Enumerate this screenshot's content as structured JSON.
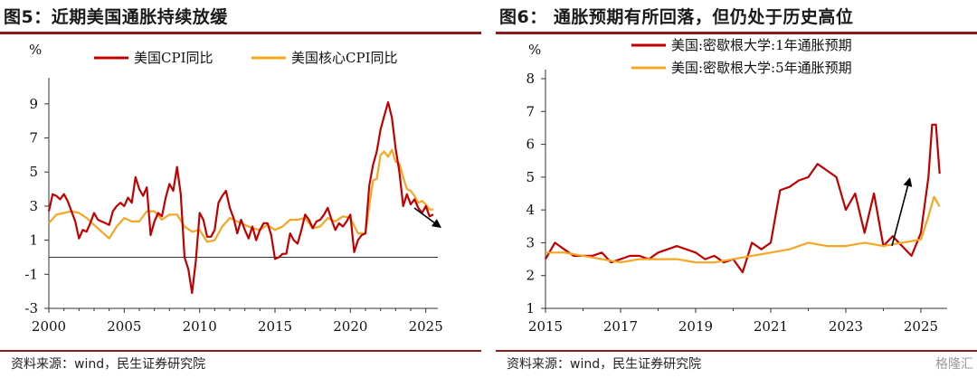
{
  "panels": [
    {
      "title": "图5：近期美国通胀持续放缓",
      "source": "资料来源：wind，民生证券研究院"
    },
    {
      "title": "图6：  通胀预期有所回落，但仍处于历史高位",
      "source": "资料来源：wind，民生证券研究院"
    }
  ],
  "watermark": "格隆汇",
  "chart_data": [
    {
      "type": "line",
      "title": "",
      "ylabel": "%",
      "xlabel": "",
      "xlim": [
        2000,
        2025.8
      ],
      "ylim": [
        -3,
        10
      ],
      "xticks": [
        2000,
        2005,
        2010,
        2015,
        2020,
        2025
      ],
      "yticks": [
        -3,
        -1,
        1,
        3,
        5,
        7,
        9
      ],
      "grid": false,
      "legend_position": "top",
      "zero_line": true,
      "series": [
        {
          "name": "美国CPI同比",
          "color": "#c00000",
          "x": [
            2000.0,
            2000.25,
            2000.5,
            2000.75,
            2001.0,
            2001.25,
            2001.5,
            2001.75,
            2002.0,
            2002.25,
            2002.5,
            2002.75,
            2003.0,
            2003.25,
            2003.5,
            2003.75,
            2004.0,
            2004.25,
            2004.5,
            2004.75,
            2005.0,
            2005.25,
            2005.5,
            2005.75,
            2006.0,
            2006.25,
            2006.5,
            2006.75,
            2007.0,
            2007.25,
            2007.5,
            2007.75,
            2008.0,
            2008.25,
            2008.5,
            2008.75,
            2009.0,
            2009.25,
            2009.5,
            2009.75,
            2010.0,
            2010.25,
            2010.5,
            2010.75,
            2011.0,
            2011.25,
            2011.5,
            2011.75,
            2012.0,
            2012.25,
            2012.5,
            2012.75,
            2013.0,
            2013.25,
            2013.5,
            2013.75,
            2014.0,
            2014.25,
            2014.5,
            2014.75,
            2015.0,
            2015.25,
            2015.5,
            2015.75,
            2016.0,
            2016.25,
            2016.5,
            2016.75,
            2017.0,
            2017.25,
            2017.5,
            2017.75,
            2018.0,
            2018.25,
            2018.5,
            2018.75,
            2019.0,
            2019.25,
            2019.5,
            2019.75,
            2020.0,
            2020.25,
            2020.5,
            2020.75,
            2021.0,
            2021.25,
            2021.5,
            2021.75,
            2022.0,
            2022.25,
            2022.5,
            2022.75,
            2023.0,
            2023.25,
            2023.5,
            2023.75,
            2024.0,
            2024.25,
            2024.5,
            2024.75,
            2025.0,
            2025.25,
            2025.5
          ],
          "values": [
            2.7,
            3.7,
            3.6,
            3.4,
            3.7,
            3.3,
            2.7,
            2.1,
            1.1,
            1.6,
            1.5,
            2.0,
            2.6,
            2.2,
            2.1,
            2.0,
            1.9,
            2.7,
            3.0,
            3.2,
            3.0,
            3.5,
            3.2,
            4.7,
            4.0,
            3.6,
            4.1,
            1.3,
            2.1,
            2.6,
            2.4,
            3.5,
            4.3,
            3.9,
            5.3,
            3.7,
            0.0,
            -0.7,
            -2.1,
            -0.2,
            2.6,
            2.2,
            1.2,
            1.2,
            1.6,
            3.2,
            3.6,
            3.9,
            2.9,
            2.3,
            1.4,
            2.2,
            1.6,
            1.1,
            1.8,
            1.0,
            1.6,
            2.0,
            2.0,
            1.3,
            -0.1,
            0.0,
            0.2,
            0.2,
            1.4,
            1.0,
            0.8,
            1.6,
            2.5,
            2.2,
            1.7,
            2.1,
            2.2,
            2.5,
            2.9,
            2.2,
            1.6,
            2.0,
            1.8,
            2.1,
            2.5,
            0.3,
            1.0,
            1.3,
            1.4,
            4.2,
            5.4,
            6.2,
            7.5,
            8.3,
            9.1,
            8.2,
            6.4,
            5.0,
            3.0,
            3.7,
            3.1,
            3.4,
            2.9,
            2.6,
            3.0,
            2.4,
            2.5
          ]
        },
        {
          "name": "美国核心CPI同比",
          "color": "#f5a623",
          "x": [
            2000.0,
            2000.5,
            2001.0,
            2001.5,
            2002.0,
            2002.5,
            2003.0,
            2003.5,
            2004.0,
            2004.5,
            2005.0,
            2005.5,
            2006.0,
            2006.5,
            2007.0,
            2007.5,
            2008.0,
            2008.5,
            2009.0,
            2009.5,
            2010.0,
            2010.5,
            2011.0,
            2011.5,
            2012.0,
            2012.5,
            2013.0,
            2013.5,
            2014.0,
            2014.5,
            2015.0,
            2015.5,
            2016.0,
            2016.5,
            2017.0,
            2017.5,
            2018.0,
            2018.5,
            2019.0,
            2019.5,
            2020.0,
            2020.5,
            2021.0,
            2021.25,
            2021.5,
            2021.75,
            2022.0,
            2022.25,
            2022.5,
            2022.75,
            2023.0,
            2023.25,
            2023.5,
            2023.75,
            2024.0,
            2024.25,
            2024.5,
            2024.75,
            2025.0,
            2025.25,
            2025.5
          ],
          "values": [
            2.0,
            2.5,
            2.6,
            2.7,
            2.6,
            2.3,
            1.9,
            1.5,
            1.1,
            1.8,
            2.3,
            2.1,
            2.1,
            2.7,
            2.7,
            2.2,
            2.5,
            2.5,
            1.8,
            1.5,
            1.6,
            0.9,
            1.0,
            1.8,
            2.3,
            2.1,
            1.9,
            1.7,
            1.6,
            1.9,
            1.6,
            1.8,
            2.2,
            2.2,
            2.3,
            1.7,
            1.8,
            2.3,
            2.1,
            2.4,
            2.3,
            1.4,
            1.4,
            3.0,
            4.5,
            4.6,
            6.0,
            6.2,
            5.9,
            6.3,
            5.6,
            5.5,
            4.7,
            4.0,
            3.9,
            3.6,
            3.2,
            3.3,
            3.1,
            2.8,
            2.8
          ]
        }
      ],
      "annotation": "downward-trend-arrow"
    },
    {
      "type": "line",
      "title": "",
      "ylabel": "%",
      "xlabel": "",
      "xlim": [
        2015,
        2025.7
      ],
      "ylim": [
        1,
        8
      ],
      "xticks": [
        2015,
        2017,
        2019,
        2021,
        2023,
        2025
      ],
      "yticks": [
        1,
        2,
        3,
        4,
        5,
        6,
        7,
        8
      ],
      "grid": false,
      "legend_position": "top",
      "series": [
        {
          "name": "美国:密歇根大学:1年通胀预期",
          "color": "#c00000",
          "x": [
            2015.0,
            2015.25,
            2015.5,
            2015.75,
            2016.0,
            2016.25,
            2016.5,
            2016.75,
            2017.0,
            2017.25,
            2017.5,
            2017.75,
            2018.0,
            2018.25,
            2018.5,
            2018.75,
            2019.0,
            2019.25,
            2019.5,
            2019.75,
            2020.0,
            2020.25,
            2020.5,
            2020.75,
            2021.0,
            2021.25,
            2021.5,
            2021.75,
            2022.0,
            2022.25,
            2022.5,
            2022.75,
            2023.0,
            2023.25,
            2023.5,
            2023.75,
            2024.0,
            2024.25,
            2024.5,
            2024.75,
            2025.0,
            2025.2,
            2025.3,
            2025.4,
            2025.5
          ],
          "values": [
            2.5,
            3.0,
            2.8,
            2.6,
            2.6,
            2.6,
            2.7,
            2.4,
            2.5,
            2.6,
            2.6,
            2.5,
            2.7,
            2.8,
            2.9,
            2.8,
            2.7,
            2.5,
            2.6,
            2.4,
            2.5,
            2.1,
            3.0,
            2.8,
            3.0,
            4.6,
            4.7,
            4.9,
            5.0,
            5.4,
            5.2,
            5.0,
            4.0,
            4.5,
            3.3,
            4.5,
            2.9,
            3.2,
            2.9,
            2.6,
            3.3,
            5.0,
            6.6,
            6.6,
            5.1
          ]
        },
        {
          "name": "美国:密歇根大学:5年通胀预期",
          "color": "#f5a623",
          "x": [
            2015.0,
            2015.5,
            2016.0,
            2016.5,
            2017.0,
            2017.5,
            2018.0,
            2018.5,
            2019.0,
            2019.5,
            2020.0,
            2020.5,
            2021.0,
            2021.5,
            2022.0,
            2022.5,
            2023.0,
            2023.5,
            2024.0,
            2024.5,
            2025.0,
            2025.2,
            2025.35,
            2025.5
          ],
          "values": [
            2.7,
            2.7,
            2.6,
            2.5,
            2.4,
            2.5,
            2.5,
            2.5,
            2.4,
            2.4,
            2.5,
            2.6,
            2.7,
            2.8,
            3.0,
            2.9,
            2.9,
            3.0,
            2.9,
            3.0,
            3.1,
            3.8,
            4.4,
            4.1
          ]
        }
      ],
      "annotation": "upward-trend-arrow"
    }
  ]
}
